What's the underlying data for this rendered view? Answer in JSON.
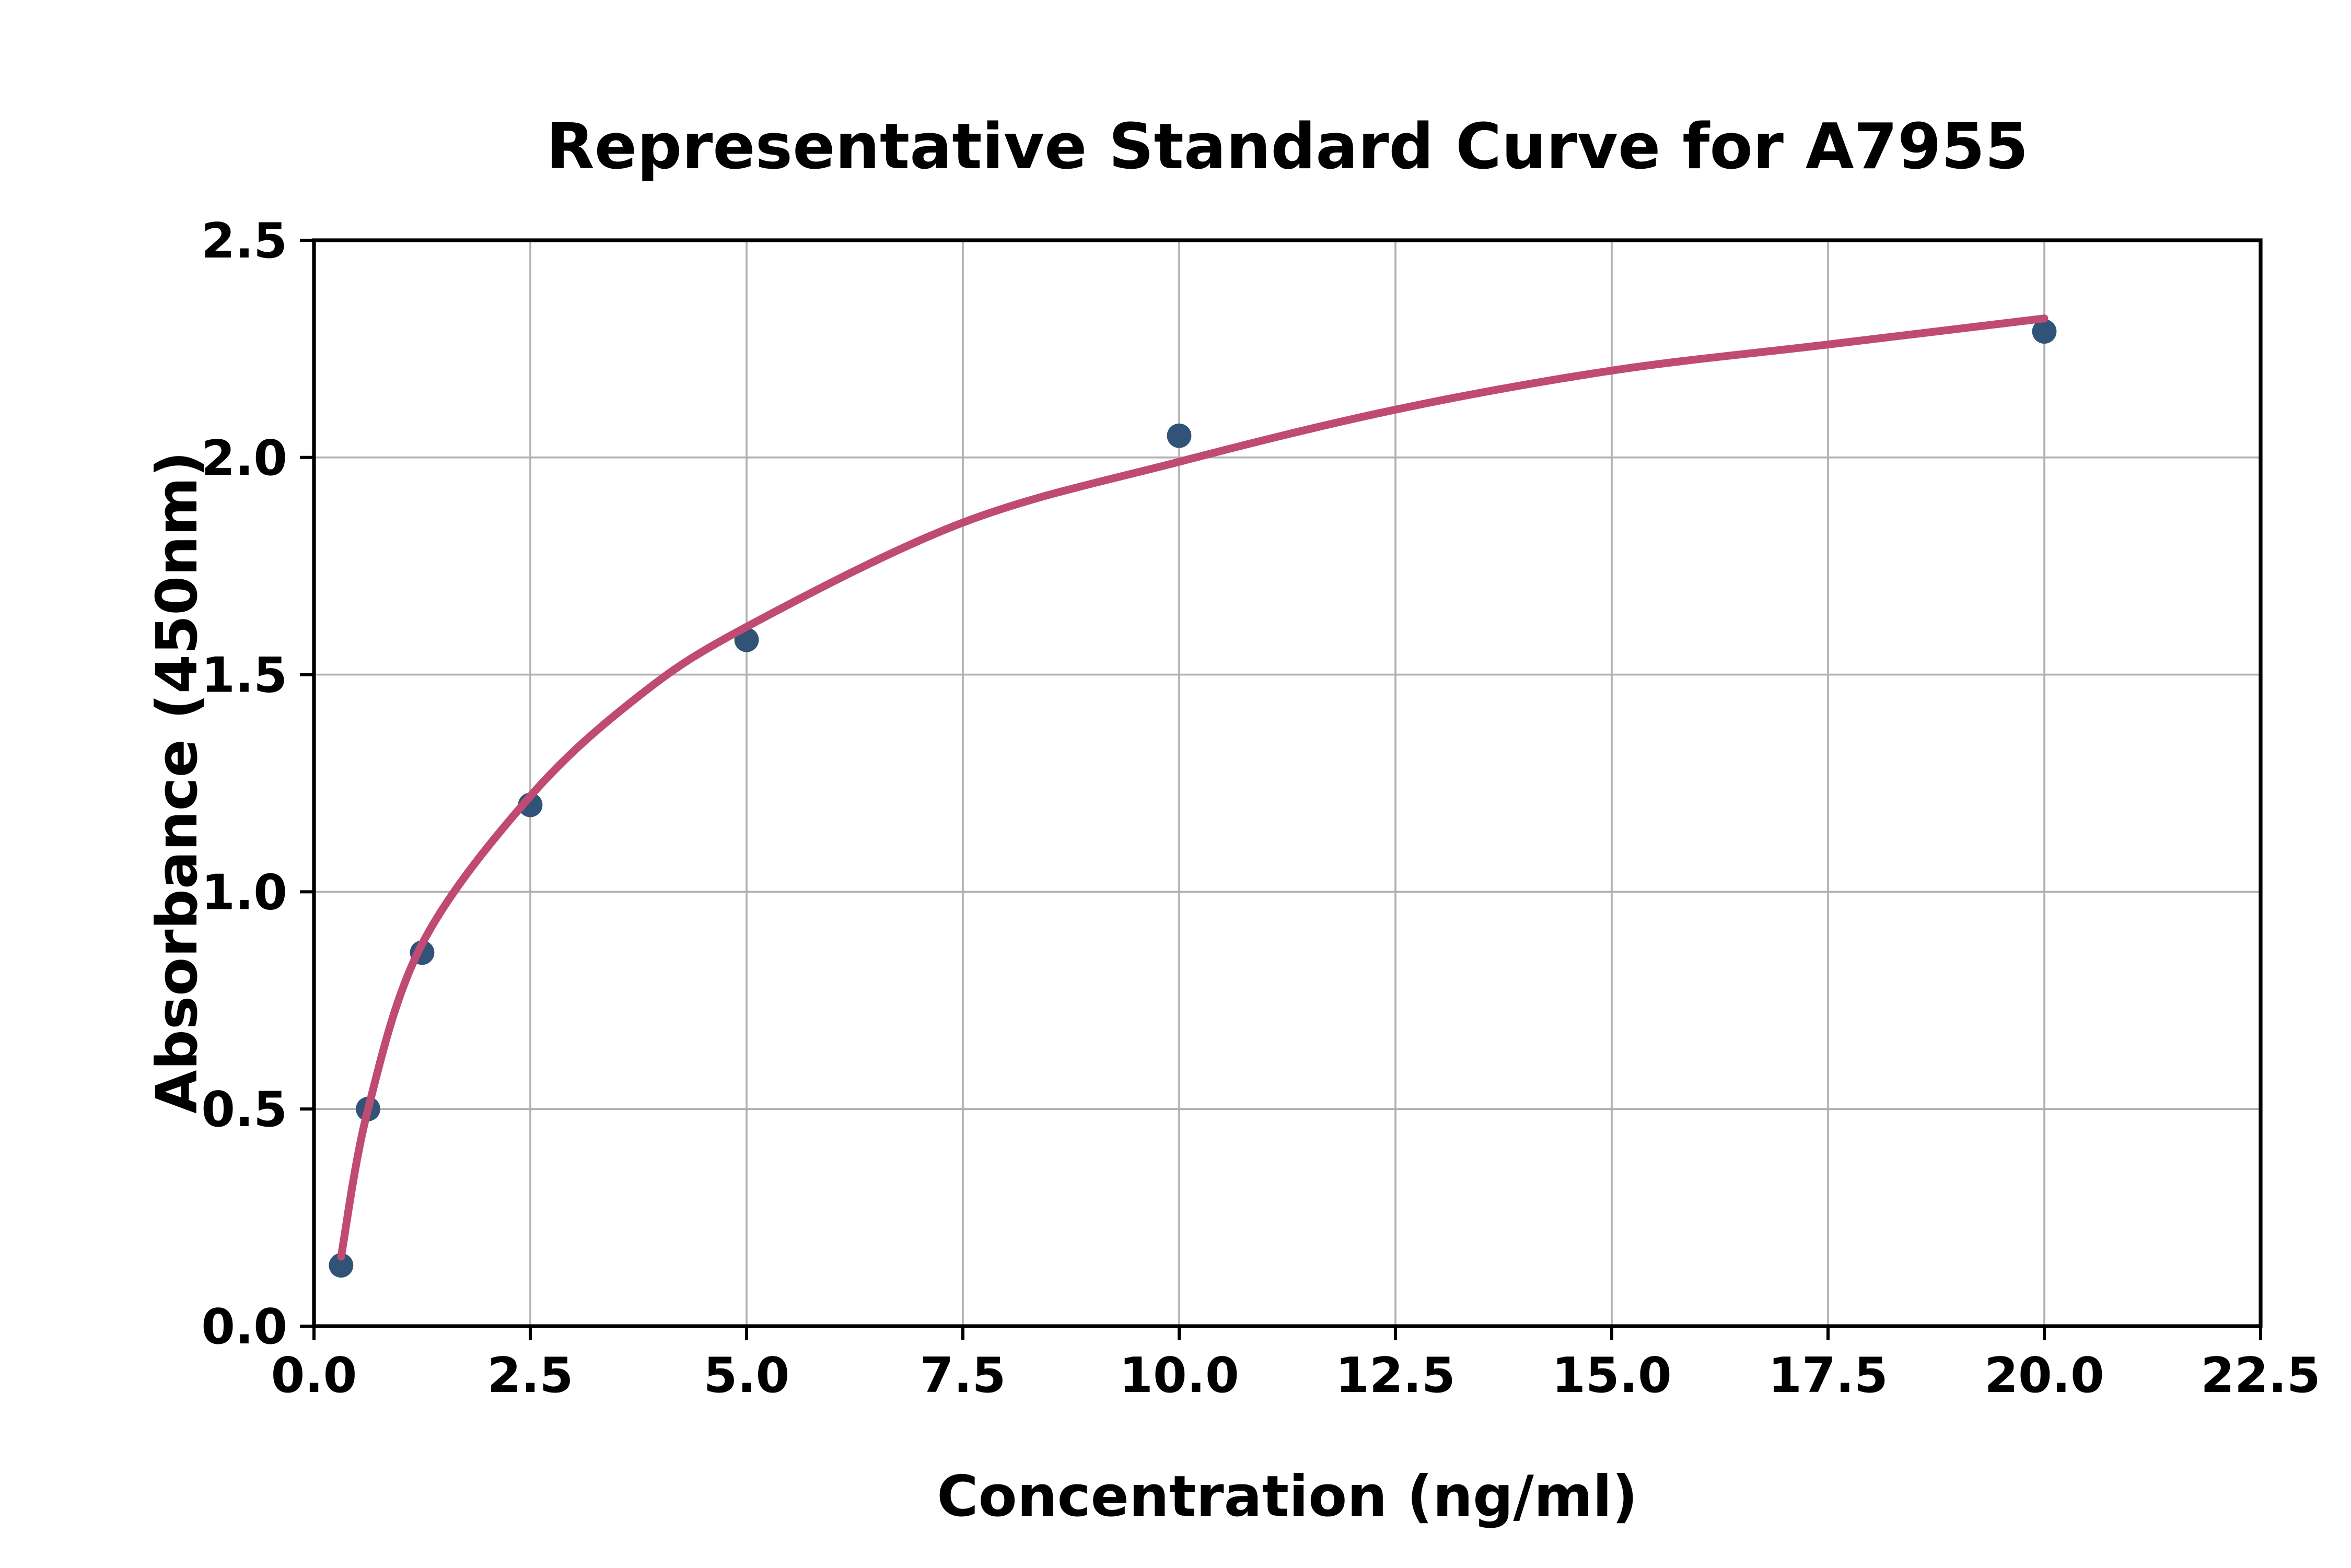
{
  "chart_data": {
    "type": "scatter",
    "title": "Representative Standard Curve for A7955",
    "xlabel": "Concentration (ng/ml)",
    "ylabel": "Absorbance (450nm)",
    "xlim": [
      0,
      22.5
    ],
    "ylim": [
      0,
      2.5
    ],
    "grid": true,
    "legend": false,
    "x_ticks": [
      0,
      2.5,
      5,
      7.5,
      10,
      12.5,
      15,
      17.5,
      20,
      22.5
    ],
    "x_tick_labels": [
      "0.0",
      "2.5",
      "5.0",
      "7.5",
      "10.0",
      "12.5",
      "15.0",
      "17.5",
      "20.0",
      "22.5"
    ],
    "y_ticks": [
      0,
      0.5,
      1,
      1.5,
      2,
      2.5
    ],
    "y_tick_labels": [
      "0.0",
      "0.5",
      "1.0",
      "1.5",
      "2.0",
      "2.5"
    ],
    "series": [
      {
        "name": "standard-points",
        "type": "scatter",
        "points": [
          [
            0.313,
            0.14
          ],
          [
            0.625,
            0.5
          ],
          [
            1.25,
            0.86
          ],
          [
            2.5,
            1.2
          ],
          [
            5.0,
            1.58
          ],
          [
            10.0,
            2.05
          ],
          [
            20.0,
            2.29
          ]
        ]
      },
      {
        "name": "fitted-curve",
        "type": "line",
        "points": [
          [
            0.313,
            0.16
          ],
          [
            0.625,
            0.5
          ],
          [
            1.25,
            0.88
          ],
          [
            2.5,
            1.22
          ],
          [
            3.75,
            1.45
          ],
          [
            5.0,
            1.61
          ],
          [
            7.5,
            1.85
          ],
          [
            10.0,
            1.99
          ],
          [
            12.5,
            2.11
          ],
          [
            15.0,
            2.2
          ],
          [
            17.5,
            2.26
          ],
          [
            20.0,
            2.32
          ]
        ]
      }
    ],
    "colors": {
      "marker": "#305377",
      "curve": "#bf4b72",
      "grid": "#b0b0b0",
      "axis": "#000000",
      "background": "#ffffff"
    }
  }
}
